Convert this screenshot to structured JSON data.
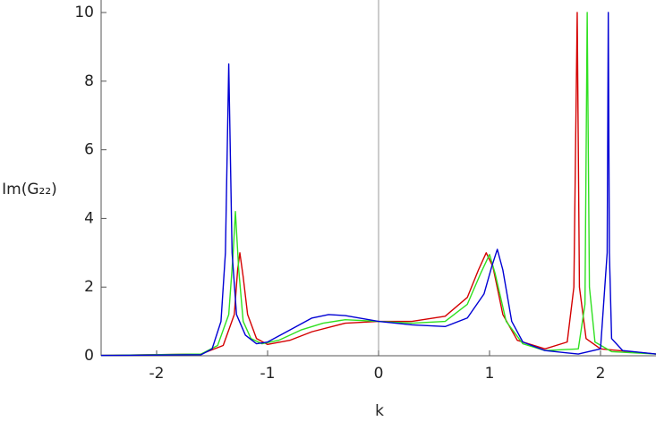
{
  "chart_data": {
    "type": "line",
    "x_label": "k",
    "y_label": "Im(G₂₂)",
    "xlim": [
      -2.5,
      2.5
    ],
    "ylim": [
      0,
      10
    ],
    "xticks": [
      -2,
      -1,
      0,
      1,
      2
    ],
    "yticks": [
      0,
      2,
      4,
      6,
      8,
      10
    ],
    "series": [
      {
        "color": "#d40000",
        "x": [
          -2.5,
          -1.6,
          -1.4,
          -1.3,
          -1.27,
          -1.25,
          -1.22,
          -1.18,
          -1.1,
          -1.0,
          -0.8,
          -0.6,
          -0.3,
          0,
          0.3,
          0.6,
          0.8,
          0.9,
          0.97,
          1.03,
          1.12,
          1.25,
          1.5,
          1.7,
          1.76,
          1.79,
          1.81,
          1.87,
          2.0,
          2.5
        ],
        "values": [
          0.01,
          0.05,
          0.3,
          1.2,
          2.5,
          3.0,
          2.3,
          1.2,
          0.5,
          0.33,
          0.45,
          0.7,
          0.95,
          1.0,
          1.0,
          1.15,
          1.7,
          2.5,
          3.0,
          2.6,
          1.2,
          0.45,
          0.2,
          0.4,
          2,
          10,
          2,
          0.5,
          0.2,
          0.05
        ]
      },
      {
        "color": "#2fe020",
        "x": [
          -2.5,
          -1.6,
          -1.45,
          -1.35,
          -1.31,
          -1.29,
          -1.26,
          -1.22,
          -1.15,
          -1.05,
          -0.9,
          -0.7,
          -0.5,
          -0.3,
          0,
          0.3,
          0.6,
          0.8,
          0.92,
          1.0,
          1.05,
          1.15,
          1.3,
          1.5,
          1.8,
          1.86,
          1.88,
          1.9,
          1.95,
          2.1,
          2.5
        ],
        "values": [
          0.01,
          0.05,
          0.3,
          1.2,
          3,
          4.2,
          2.5,
          1.0,
          0.5,
          0.35,
          0.45,
          0.75,
          0.95,
          1.05,
          1.0,
          0.95,
          1.0,
          1.5,
          2.4,
          2.95,
          2.4,
          1.0,
          0.35,
          0.15,
          0.2,
          1.5,
          10,
          2,
          0.4,
          0.12,
          0.05
        ]
      },
      {
        "color": "#0000d4",
        "x": [
          -2.5,
          -1.6,
          -1.5,
          -1.42,
          -1.38,
          -1.35,
          -1.32,
          -1.28,
          -1.2,
          -1.1,
          -1.0,
          -0.8,
          -0.6,
          -0.45,
          -0.3,
          0,
          0.3,
          0.6,
          0.8,
          0.95,
          1.02,
          1.07,
          1.12,
          1.2,
          1.3,
          1.5,
          1.8,
          2.0,
          2.06,
          2.07,
          2.08,
          2.1,
          2.2,
          2.5
        ],
        "values": [
          0.01,
          0.03,
          0.2,
          1,
          3,
          8.5,
          3,
          1.2,
          0.6,
          0.35,
          0.4,
          0.75,
          1.1,
          1.2,
          1.17,
          1.0,
          0.9,
          0.85,
          1.1,
          1.8,
          2.6,
          3.1,
          2.5,
          1.0,
          0.4,
          0.15,
          0.05,
          0.2,
          3,
          10,
          3,
          0.5,
          0.15,
          0.05
        ]
      }
    ]
  }
}
